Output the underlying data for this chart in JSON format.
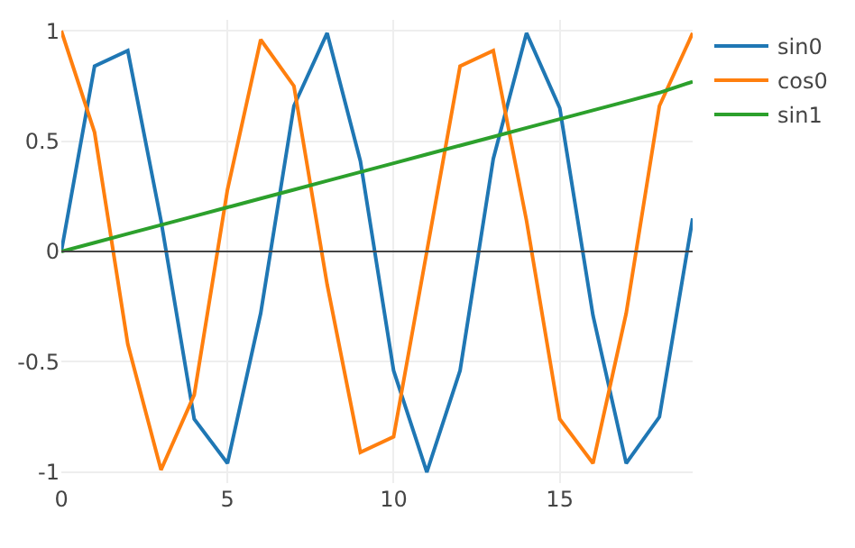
{
  "chart_data": {
    "type": "line",
    "x": [
      0,
      1,
      2,
      3,
      4,
      5,
      6,
      7,
      8,
      9,
      10,
      11,
      12,
      13,
      14,
      15,
      16,
      17,
      18,
      19
    ],
    "series": [
      {
        "name": "sin0",
        "color": "#1f77b4",
        "values": [
          0,
          0.84,
          0.91,
          0.14,
          -0.76,
          -0.96,
          -0.28,
          0.66,
          0.99,
          0.41,
          -0.54,
          -1.0,
          -0.54,
          0.42,
          0.99,
          0.65,
          -0.29,
          -0.96,
          -0.75,
          0.15
        ]
      },
      {
        "name": "cos0",
        "color": "#ff7f0e",
        "values": [
          1,
          0.54,
          -0.42,
          -0.99,
          -0.65,
          0.28,
          0.96,
          0.75,
          -0.15,
          -0.91,
          -0.84,
          0.0,
          0.84,
          0.91,
          0.14,
          -0.76,
          -0.96,
          -0.28,
          0.66,
          0.99
        ]
      },
      {
        "name": "sin1",
        "color": "#2ca02c",
        "values": [
          0,
          0.04,
          0.08,
          0.12,
          0.16,
          0.2,
          0.24,
          0.28,
          0.32,
          0.36,
          0.4,
          0.44,
          0.48,
          0.52,
          0.56,
          0.6,
          0.64,
          0.68,
          0.72,
          0.77
        ]
      }
    ],
    "xlim": [
      0,
      19
    ],
    "xticks": [
      0,
      5,
      10,
      15
    ],
    "ylim": [
      -1.05,
      1.05
    ],
    "yticks": [
      -1,
      -0.5,
      0,
      0.5,
      1
    ],
    "ref_lines": [
      {
        "axis": "y",
        "value": 0,
        "color": "#444444"
      }
    ],
    "grid": true,
    "legend": "top right",
    "marker": "none",
    "line_style": "solid"
  }
}
